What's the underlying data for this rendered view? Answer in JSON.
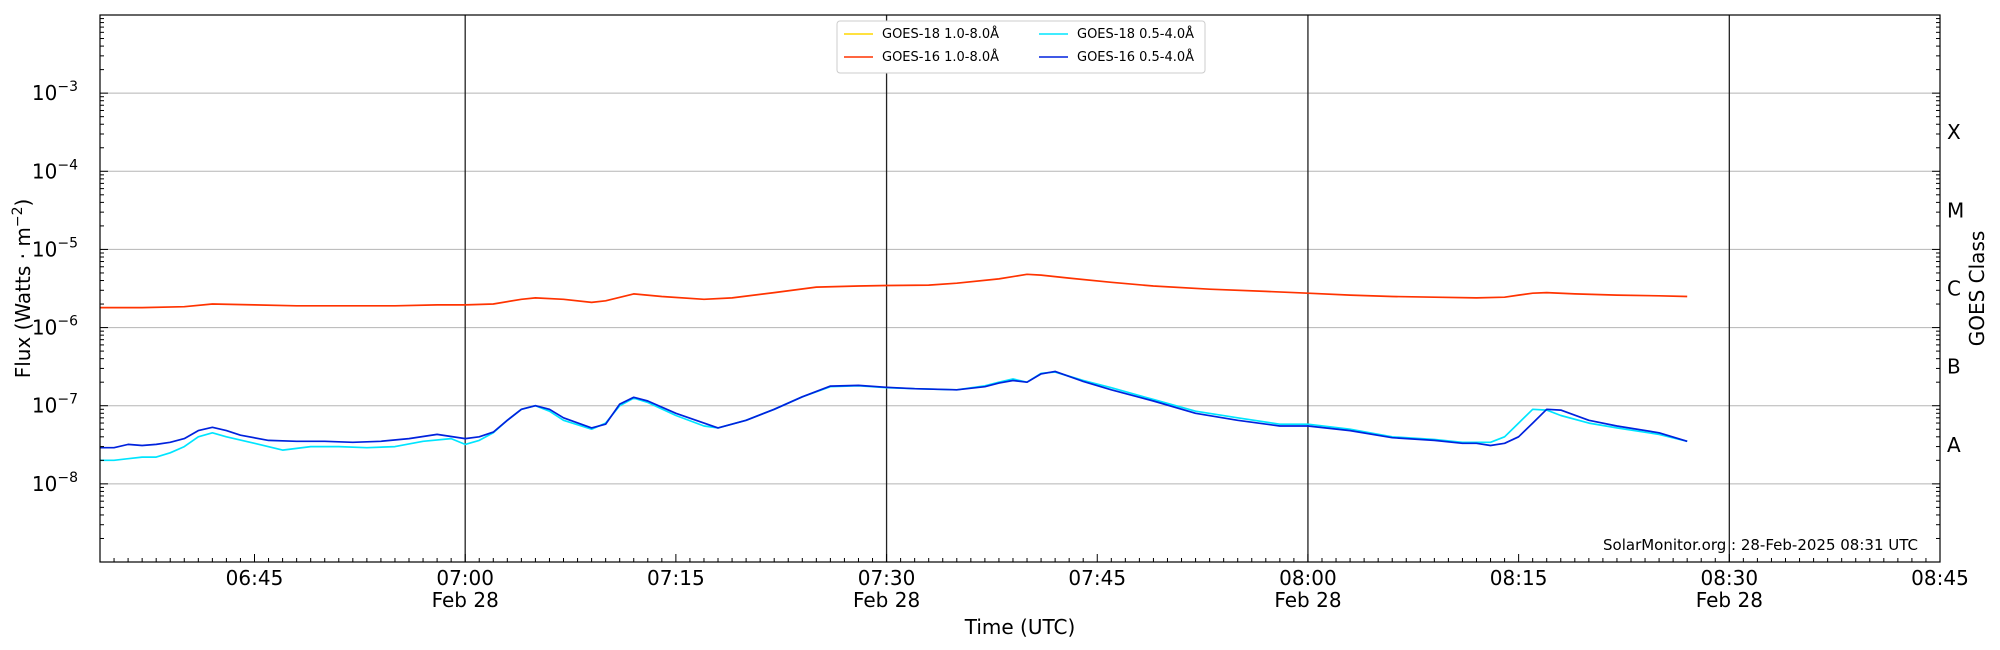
{
  "chart_data": {
    "type": "line",
    "x_unit": "UTC time (HH:MM) on 28-Feb-2025",
    "xlabel": "Time (UTC)",
    "ylabel": "Flux (Watts · m⁻²)",
    "ylabel_right": "GOES Class",
    "y_scale": "log",
    "xlim": [
      "06:34",
      "08:45"
    ],
    "ylim": [
      1e-09,
      0.01
    ],
    "grid": "horizontal major gridlines at each decade",
    "x_ticks": [
      {
        "t": "06:45",
        "label": "06:45",
        "sub": ""
      },
      {
        "t": "07:00",
        "label": "07:00",
        "sub": "Feb 28"
      },
      {
        "t": "07:15",
        "label": "07:15",
        "sub": ""
      },
      {
        "t": "07:30",
        "label": "07:30",
        "sub": "Feb 28"
      },
      {
        "t": "07:45",
        "label": "07:45",
        "sub": ""
      },
      {
        "t": "08:00",
        "label": "08:00",
        "sub": "Feb 28"
      },
      {
        "t": "08:15",
        "label": "08:15",
        "sub": ""
      },
      {
        "t": "08:30",
        "label": "08:30",
        "sub": "Feb 28"
      },
      {
        "t": "08:45",
        "label": "08:45",
        "sub": ""
      }
    ],
    "y_ticks": [
      {
        "v": 1e-08,
        "base": "10",
        "exp": "−8"
      },
      {
        "v": 1e-07,
        "base": "10",
        "exp": "−7"
      },
      {
        "v": 1e-06,
        "base": "10",
        "exp": "−6"
      },
      {
        "v": 1e-05,
        "base": "10",
        "exp": "−5"
      },
      {
        "v": 0.0001,
        "base": "10",
        "exp": "−4"
      },
      {
        "v": 0.001,
        "base": "10",
        "exp": "−3"
      }
    ],
    "vlines": [
      "07:00",
      "07:30",
      "08:00",
      "08:30"
    ],
    "goes_classes": [
      {
        "label": "A",
        "v": 3.16e-08
      },
      {
        "label": "B",
        "v": 3.16e-07
      },
      {
        "label": "C",
        "v": 3.16e-06
      },
      {
        "label": "M",
        "v": 3.16e-05
      },
      {
        "label": "X",
        "v": 0.000316
      }
    ],
    "legend": {
      "placement": "top-center",
      "columns": [
        [
          "GOES-18 1.0-8.0Å",
          "GOES-16 1.0-8.0Å"
        ],
        [
          "GOES-18 0.5-4.0Å",
          "GOES-16 0.5-4.0Å"
        ]
      ]
    },
    "series": [
      {
        "name": "GOES-18 1.0-8.0Å",
        "color": "#ffd700",
        "x": [],
        "y": []
      },
      {
        "name": "GOES-16 1.0-8.0Å",
        "color": "#ff3300",
        "x": [
          "06:34",
          "06:37",
          "06:40",
          "06:42",
          "06:45",
          "06:48",
          "06:52",
          "06:55",
          "06:58",
          "07:00",
          "07:02",
          "07:04",
          "07:05",
          "07:07",
          "07:09",
          "07:10",
          "07:12",
          "07:14",
          "07:17",
          "07:19",
          "07:22",
          "07:25",
          "07:28",
          "07:30",
          "07:33",
          "07:35",
          "07:38",
          "07:40",
          "07:41",
          "07:43",
          "07:46",
          "07:49",
          "07:53",
          "07:57",
          "08:00",
          "08:03",
          "08:06",
          "08:09",
          "08:12",
          "08:14",
          "08:15",
          "08:16",
          "08:17",
          "08:19",
          "08:22",
          "08:25",
          "08:27"
        ],
        "y": [
          1.8e-06,
          1.8e-06,
          1.85e-06,
          2e-06,
          1.95e-06,
          1.9e-06,
          1.9e-06,
          1.9e-06,
          1.95e-06,
          1.95e-06,
          2e-06,
          2.3e-06,
          2.4e-06,
          2.3e-06,
          2.1e-06,
          2.2e-06,
          2.7e-06,
          2.5e-06,
          2.3e-06,
          2.4e-06,
          2.8e-06,
          3.3e-06,
          3.4e-06,
          3.45e-06,
          3.5e-06,
          3.7e-06,
          4.2e-06,
          4.8e-06,
          4.7e-06,
          4.3e-06,
          3.8e-06,
          3.4e-06,
          3.1e-06,
          2.9e-06,
          2.75e-06,
          2.6e-06,
          2.5e-06,
          2.45e-06,
          2.4e-06,
          2.45e-06,
          2.6e-06,
          2.75e-06,
          2.8e-06,
          2.7e-06,
          2.6e-06,
          2.55e-06,
          2.5e-06
        ]
      },
      {
        "name": "GOES-18 0.5-4.0Å",
        "color": "#00e5ff",
        "x": [
          "06:34",
          "06:35",
          "06:37",
          "06:38",
          "06:39",
          "06:40",
          "06:41",
          "06:42",
          "06:43",
          "06:45",
          "06:47",
          "06:49",
          "06:51",
          "06:53",
          "06:55",
          "06:57",
          "06:59",
          "07:00",
          "07:01",
          "07:02",
          "07:03",
          "07:04",
          "07:05",
          "07:06",
          "07:07",
          "07:09",
          "07:10",
          "07:11",
          "07:12",
          "07:13",
          "07:15",
          "07:17",
          "07:18",
          "07:20",
          "07:22",
          "07:24",
          "07:26",
          "07:28",
          "07:30",
          "07:32",
          "07:35",
          "07:37",
          "07:38",
          "07:39",
          "07:40",
          "07:41",
          "07:42",
          "07:44",
          "07:46",
          "07:49",
          "07:52",
          "07:55",
          "07:58",
          "08:00",
          "08:03",
          "08:06",
          "08:09",
          "08:11",
          "08:12",
          "08:13",
          "08:14",
          "08:15",
          "08:16",
          "08:17",
          "08:18",
          "08:20",
          "08:22",
          "08:25",
          "08:27"
        ],
        "y": [
          2e-08,
          2e-08,
          2.2e-08,
          2.2e-08,
          2.5e-08,
          3e-08,
          4e-08,
          4.5e-08,
          4e-08,
          3.3e-08,
          2.7e-08,
          3e-08,
          3e-08,
          2.9e-08,
          3e-08,
          3.5e-08,
          3.8e-08,
          3.2e-08,
          3.6e-08,
          4.5e-08,
          6.5e-08,
          9e-08,
          1e-07,
          8.5e-08,
          6.5e-08,
          5e-08,
          6e-08,
          1e-07,
          1.25e-07,
          1.1e-07,
          7.5e-08,
          5.5e-08,
          5.2e-08,
          6.5e-08,
          9e-08,
          1.3e-07,
          1.75e-07,
          1.8e-07,
          1.7e-07,
          1.65e-07,
          1.6e-07,
          1.8e-07,
          2e-07,
          2.2e-07,
          2e-07,
          2.6e-07,
          2.7e-07,
          2.1e-07,
          1.7e-07,
          1.2e-07,
          8.5e-08,
          7e-08,
          5.8e-08,
          5.8e-08,
          5e-08,
          4e-08,
          3.7e-08,
          3.4e-08,
          3.4e-08,
          3.4e-08,
          4e-08,
          6e-08,
          9e-08,
          8.8e-08,
          7.5e-08,
          6e-08,
          5.2e-08,
          4.3e-08,
          3.5e-08
        ]
      },
      {
        "name": "GOES-16 0.5-4.0Å",
        "color": "#0022dd",
        "x": [
          "06:34",
          "06:35",
          "06:36",
          "06:37",
          "06:38",
          "06:39",
          "06:40",
          "06:41",
          "06:42",
          "06:43",
          "06:44",
          "06:46",
          "06:48",
          "06:50",
          "06:52",
          "06:54",
          "06:56",
          "06:58",
          "07:00",
          "07:01",
          "07:02",
          "07:03",
          "07:04",
          "07:05",
          "07:06",
          "07:07",
          "07:09",
          "07:10",
          "07:11",
          "07:12",
          "07:13",
          "07:15",
          "07:17",
          "07:18",
          "07:20",
          "07:22",
          "07:24",
          "07:26",
          "07:28",
          "07:30",
          "07:32",
          "07:35",
          "07:37",
          "07:38",
          "07:39",
          "07:40",
          "07:41",
          "07:42",
          "07:44",
          "07:46",
          "07:49",
          "07:52",
          "07:55",
          "07:58",
          "08:00",
          "08:03",
          "08:06",
          "08:09",
          "08:11",
          "08:12",
          "08:13",
          "08:14",
          "08:15",
          "08:16",
          "08:17",
          "08:18",
          "08:20",
          "08:22",
          "08:25",
          "08:27"
        ],
        "y": [
          2.9e-08,
          2.9e-08,
          3.2e-08,
          3.1e-08,
          3.2e-08,
          3.4e-08,
          3.8e-08,
          4.8e-08,
          5.3e-08,
          4.8e-08,
          4.2e-08,
          3.6e-08,
          3.5e-08,
          3.5e-08,
          3.4e-08,
          3.5e-08,
          3.8e-08,
          4.3e-08,
          3.8e-08,
          4e-08,
          4.6e-08,
          6.5e-08,
          9e-08,
          1e-07,
          9e-08,
          7e-08,
          5.2e-08,
          5.8e-08,
          1.05e-07,
          1.28e-07,
          1.15e-07,
          8e-08,
          6e-08,
          5.2e-08,
          6.5e-08,
          9e-08,
          1.3e-07,
          1.78e-07,
          1.82e-07,
          1.72e-07,
          1.65e-07,
          1.6e-07,
          1.75e-07,
          1.95e-07,
          2.1e-07,
          2e-07,
          2.55e-07,
          2.75e-07,
          2.05e-07,
          1.6e-07,
          1.15e-07,
          8e-08,
          6.5e-08,
          5.5e-08,
          5.5e-08,
          4.8e-08,
          3.9e-08,
          3.6e-08,
          3.3e-08,
          3.3e-08,
          3.1e-08,
          3.3e-08,
          4e-08,
          6e-08,
          9e-08,
          8.8e-08,
          6.5e-08,
          5.5e-08,
          4.5e-08,
          3.5e-08
        ]
      }
    ],
    "credit": "SolarMonitor.org : 28-Feb-2025 08:31 UTC"
  }
}
